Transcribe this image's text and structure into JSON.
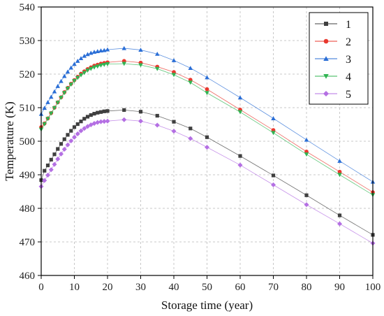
{
  "chart_data": {
    "type": "scatter",
    "title": "",
    "xlabel": "Storage time (year)",
    "ylabel": "Temperature (K)",
    "xlim": [
      0,
      100
    ],
    "ylim": [
      460,
      540
    ],
    "xticks": [
      0,
      10,
      20,
      30,
      40,
      50,
      60,
      70,
      80,
      90,
      100
    ],
    "yticks": [
      460,
      470,
      480,
      490,
      500,
      510,
      520,
      530,
      540
    ],
    "grid": true,
    "legend_position": "top-right",
    "x": [
      0,
      1,
      2,
      3,
      4,
      5,
      6,
      7,
      8,
      9,
      10,
      11,
      12,
      13,
      14,
      15,
      16,
      17,
      18,
      19,
      20,
      25,
      30,
      35,
      40,
      45,
      50,
      60,
      70,
      80,
      90,
      100
    ],
    "series": [
      {
        "name": "1",
        "marker": "square",
        "color": "#3f3f3f",
        "values": [
          488.4,
          491.2,
          492.8,
          494.5,
          496.1,
          497.7,
          499.2,
          500.6,
          501.9,
          503.1,
          504.2,
          505.1,
          505.9,
          506.7,
          507.3,
          507.8,
          508.2,
          508.5,
          508.7,
          508.9,
          509.0,
          509.3,
          508.8,
          507.6,
          505.8,
          503.8,
          501.2,
          495.6,
          489.8,
          483.9,
          477.9,
          472.1
        ]
      },
      {
        "name": "2",
        "marker": "circle",
        "color": "#e8382e",
        "values": [
          504.2,
          505.3,
          506.8,
          508.4,
          510.0,
          511.6,
          513.1,
          514.6,
          515.9,
          517.1,
          518.2,
          519.2,
          520.1,
          520.8,
          521.5,
          522.0,
          522.5,
          522.8,
          523.1,
          523.3,
          523.5,
          523.9,
          523.4,
          522.2,
          520.6,
          518.3,
          515.5,
          509.4,
          503.3,
          496.9,
          490.9,
          484.8
        ]
      },
      {
        "name": "3",
        "marker": "triangle-up",
        "color": "#2a6ed6",
        "values": [
          508.1,
          509.9,
          511.6,
          513.2,
          514.8,
          516.4,
          517.9,
          519.4,
          520.7,
          521.9,
          523.0,
          523.9,
          524.7,
          525.4,
          525.9,
          526.3,
          526.6,
          526.8,
          527.0,
          527.1,
          527.3,
          527.7,
          527.2,
          526.0,
          524.1,
          521.8,
          519.0,
          513.0,
          506.8,
          500.4,
          494.1,
          487.9
        ]
      },
      {
        "name": "4",
        "marker": "triangle-down",
        "color": "#30b452",
        "values": [
          503.5,
          505.1,
          506.7,
          508.3,
          509.9,
          511.5,
          513.0,
          514.4,
          515.7,
          516.9,
          518.0,
          518.9,
          519.7,
          520.4,
          521.1,
          521.6,
          522.0,
          522.3,
          522.6,
          522.8,
          523.0,
          523.1,
          522.7,
          521.6,
          519.8,
          517.5,
          514.4,
          508.7,
          502.5,
          496.1,
          490.0,
          484.0
        ]
      },
      {
        "name": "5",
        "marker": "diamond",
        "color": "#b46fe3",
        "values": [
          486.5,
          488.3,
          489.9,
          491.5,
          493.1,
          494.7,
          496.2,
          497.6,
          498.9,
          500.1,
          501.2,
          502.2,
          503.1,
          503.8,
          504.4,
          504.9,
          505.3,
          505.6,
          505.8,
          505.9,
          506.0,
          506.4,
          506.0,
          504.8,
          503.0,
          500.8,
          498.2,
          492.9,
          487.0,
          481.1,
          475.4,
          469.6
        ]
      }
    ]
  }
}
